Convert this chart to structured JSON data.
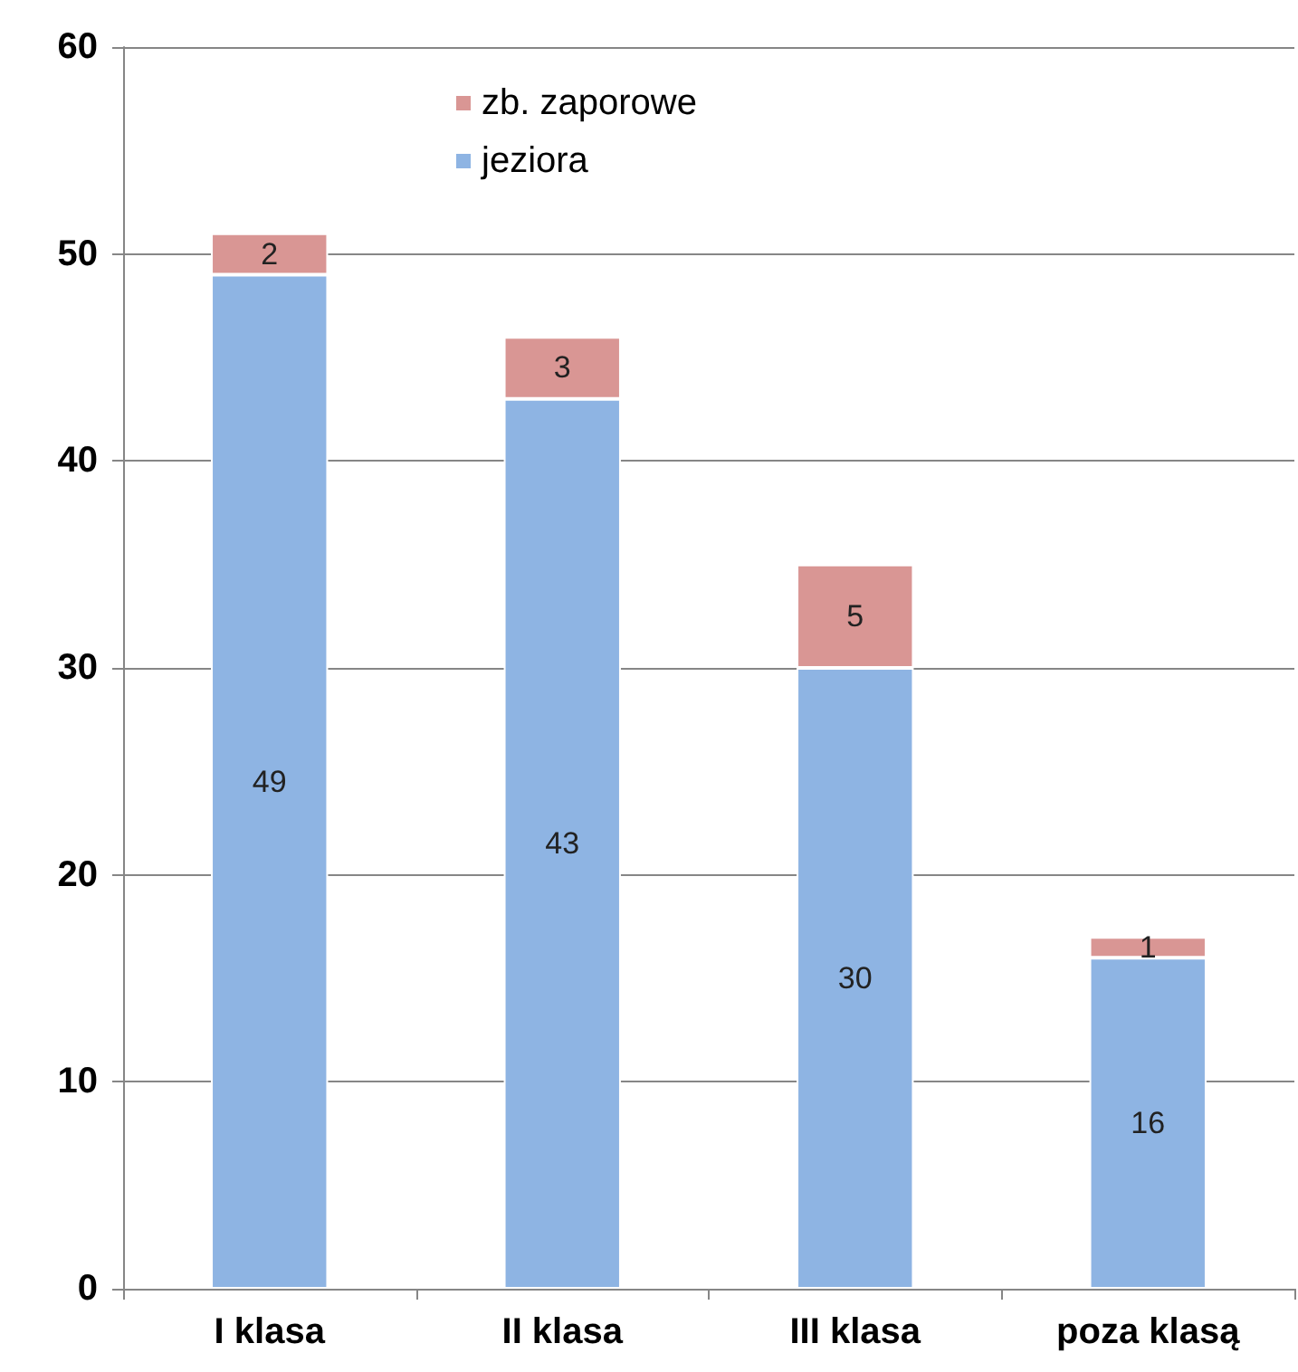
{
  "chart_data": {
    "type": "bar",
    "stacked": true,
    "categories": [
      "I klasa",
      "II klasa",
      "III klasa",
      "poza klasą"
    ],
    "series": [
      {
        "name": "jeziora",
        "color": "#8eb4e3",
        "values": [
          49,
          43,
          30,
          16
        ]
      },
      {
        "name": "zb. zaporowe",
        "color": "#d99694",
        "values": [
          2,
          3,
          5,
          1
        ]
      }
    ],
    "ylim": [
      0,
      60
    ],
    "yticks": [
      0,
      10,
      20,
      30,
      40,
      50,
      60
    ],
    "grid": "y",
    "legend": "top",
    "data_labels": true
  }
}
